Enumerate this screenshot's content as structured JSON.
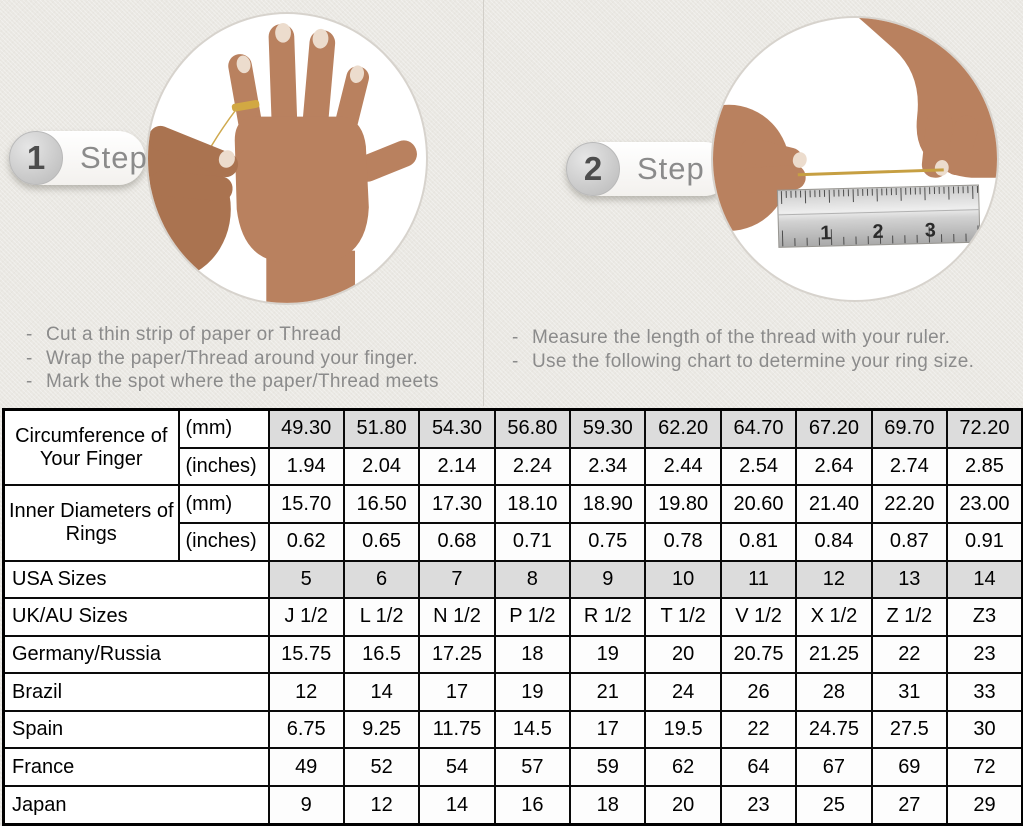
{
  "colors": {
    "page_background": "#eae8e3",
    "table_shaded_cell": "#dcdcdc",
    "table_border": "#000000",
    "instruction_text": "#8b8b8b"
  },
  "steps": [
    {
      "number": "1",
      "label": "Step",
      "illustration": "hand-with-ring-and-thread",
      "instructions": [
        "Cut a thin strip of paper or Thread",
        "Wrap the paper/Thread around your finger.",
        "Mark the spot where the paper/Thread meets"
      ]
    },
    {
      "number": "2",
      "label": "Step",
      "illustration": "measuring-thread-with-ruler",
      "instructions": [
        "Measure the length of the thread with your ruler.",
        "Use the following chart to determine your ring size."
      ]
    }
  ],
  "ruler_numbers": [
    "1",
    "2",
    "3"
  ],
  "size_chart": {
    "measure_groups": [
      {
        "label": "Circumference of Your Finger",
        "rows": [
          {
            "unit": "(mm)",
            "shaded": true,
            "values": [
              "49.30",
              "51.80",
              "54.30",
              "56.80",
              "59.30",
              "62.20",
              "64.70",
              "67.20",
              "69.70",
              "72.20"
            ]
          },
          {
            "unit": "(inches)",
            "shaded": false,
            "values": [
              "1.94",
              "2.04",
              "2.14",
              "2.24",
              "2.34",
              "2.44",
              "2.54",
              "2.64",
              "2.74",
              "2.85"
            ]
          }
        ]
      },
      {
        "label": "Inner Diameters of Rings",
        "rows": [
          {
            "unit": "(mm)",
            "shaded": false,
            "values": [
              "15.70",
              "16.50",
              "17.30",
              "18.10",
              "18.90",
              "19.80",
              "20.60",
              "21.40",
              "22.20",
              "23.00"
            ]
          },
          {
            "unit": "(inches)",
            "shaded": false,
            "values": [
              "0.62",
              "0.65",
              "0.68",
              "0.71",
              "0.75",
              "0.78",
              "0.81",
              "0.84",
              "0.87",
              "0.91"
            ]
          }
        ]
      }
    ],
    "region_rows": [
      {
        "label": "USA Sizes",
        "shaded": true,
        "values": [
          "5",
          "6",
          "7",
          "8",
          "9",
          "10",
          "11",
          "12",
          "13",
          "14"
        ]
      },
      {
        "label": "UK/AU Sizes",
        "shaded": false,
        "values": [
          "J 1/2",
          "L 1/2",
          "N 1/2",
          "P 1/2",
          "R 1/2",
          "T 1/2",
          "V 1/2",
          "X 1/2",
          "Z 1/2",
          "Z3"
        ]
      },
      {
        "label": "Germany/Russia",
        "shaded": false,
        "values": [
          "15.75",
          "16.5",
          "17.25",
          "18",
          "19",
          "20",
          "20.75",
          "21.25",
          "22",
          "23"
        ]
      },
      {
        "label": "Brazil",
        "shaded": false,
        "values": [
          "12",
          "14",
          "17",
          "19",
          "21",
          "24",
          "26",
          "28",
          "31",
          "33"
        ]
      },
      {
        "label": "Spain",
        "shaded": false,
        "values": [
          "6.75",
          "9.25",
          "11.75",
          "14.5",
          "17",
          "19.5",
          "22",
          "24.75",
          "27.5",
          "30"
        ]
      },
      {
        "label": "France",
        "shaded": false,
        "values": [
          "49",
          "52",
          "54",
          "57",
          "59",
          "62",
          "64",
          "67",
          "69",
          "72"
        ]
      },
      {
        "label": "Japan",
        "shaded": false,
        "values": [
          "9",
          "12",
          "14",
          "16",
          "18",
          "20",
          "23",
          "25",
          "27",
          "29"
        ]
      }
    ]
  }
}
